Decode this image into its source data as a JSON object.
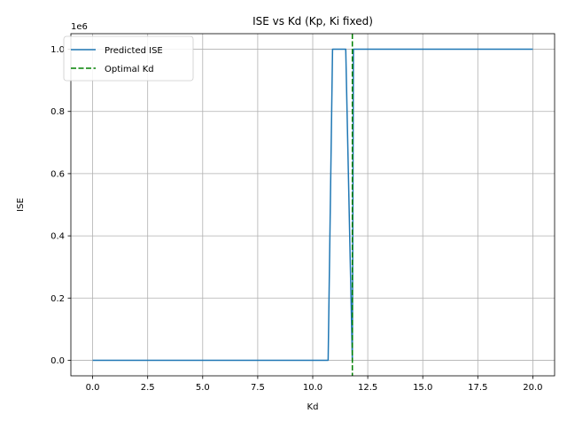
{
  "chart_data": {
    "type": "line",
    "title": "ISE vs Kd (Kp, Ki fixed)",
    "xlabel": "Kd",
    "ylabel": "ISE",
    "y_multiplier_label": "1e6",
    "xlim": [
      -0.99,
      20.99
    ],
    "ylim": [
      -0.05,
      1.05
    ],
    "xticks": [
      0.0,
      2.5,
      5.0,
      7.5,
      10.0,
      12.5,
      15.0,
      17.5,
      20.0
    ],
    "xtick_labels": [
      "0.0",
      "2.5",
      "5.0",
      "7.5",
      "10.0",
      "12.5",
      "15.0",
      "17.5",
      "20.0"
    ],
    "yticks": [
      0.0,
      0.2,
      0.4,
      0.6,
      0.8,
      1.0
    ],
    "ytick_labels": [
      "0.0",
      "0.2",
      "0.4",
      "0.6",
      "0.8",
      "1.0"
    ],
    "grid": true,
    "legend_position": "top-left",
    "series": [
      {
        "name": "Predicted ISE",
        "color": "#1f77b4",
        "style": "solid",
        "x": [
          0.0,
          10.7,
          10.9,
          11.5,
          11.8,
          11.85,
          20.0
        ],
        "y": [
          0.0,
          0.0,
          1.0,
          1.0,
          0.0,
          1.0,
          1.0
        ]
      },
      {
        "name": "Optimal Kd",
        "color": "#008000",
        "style": "dashed",
        "vline_x": 11.8
      }
    ]
  }
}
